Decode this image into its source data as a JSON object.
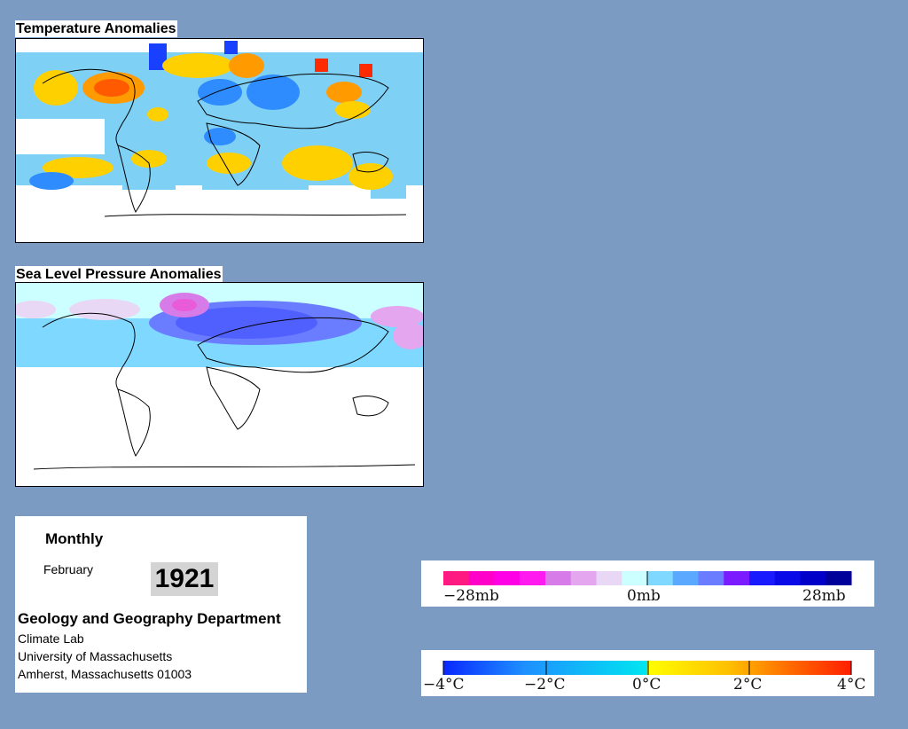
{
  "temperature_panel": {
    "title": "Temperature Anomalies"
  },
  "pressure_panel": {
    "title": "Sea Level Pressure Anomalies"
  },
  "info": {
    "period": "Monthly",
    "month": "February",
    "year": "1921",
    "department": "Geology and Geography Department",
    "address_lines": [
      "Climate Lab",
      "University of Massachusetts",
      "Amherst, Massachusetts 01003"
    ]
  },
  "pressure_legend": {
    "labels": [
      "−28mb",
      "0mb",
      "28mb"
    ],
    "colors": [
      "#ff1a82",
      "#ff00c8",
      "#ff00e6",
      "#ff1af0",
      "#d77be8",
      "#e3a6ef",
      "#e8d8f6",
      "#ccffff",
      "#7fd8ff",
      "#5aa8ff",
      "#6a7cff",
      "#7a1cff",
      "#1a1aff",
      "#0a0ae8",
      "#0000c8",
      "#00009a"
    ]
  },
  "temperature_legend": {
    "labels": [
      "−4°C",
      "−2°C",
      "0°C",
      "2°C",
      "4°C"
    ],
    "gradient": [
      "#0a28ff",
      "#1e90ff",
      "#00e6f0",
      "#ffff00",
      "#ffc000",
      "#ff6a00",
      "#ff1e00"
    ]
  }
}
